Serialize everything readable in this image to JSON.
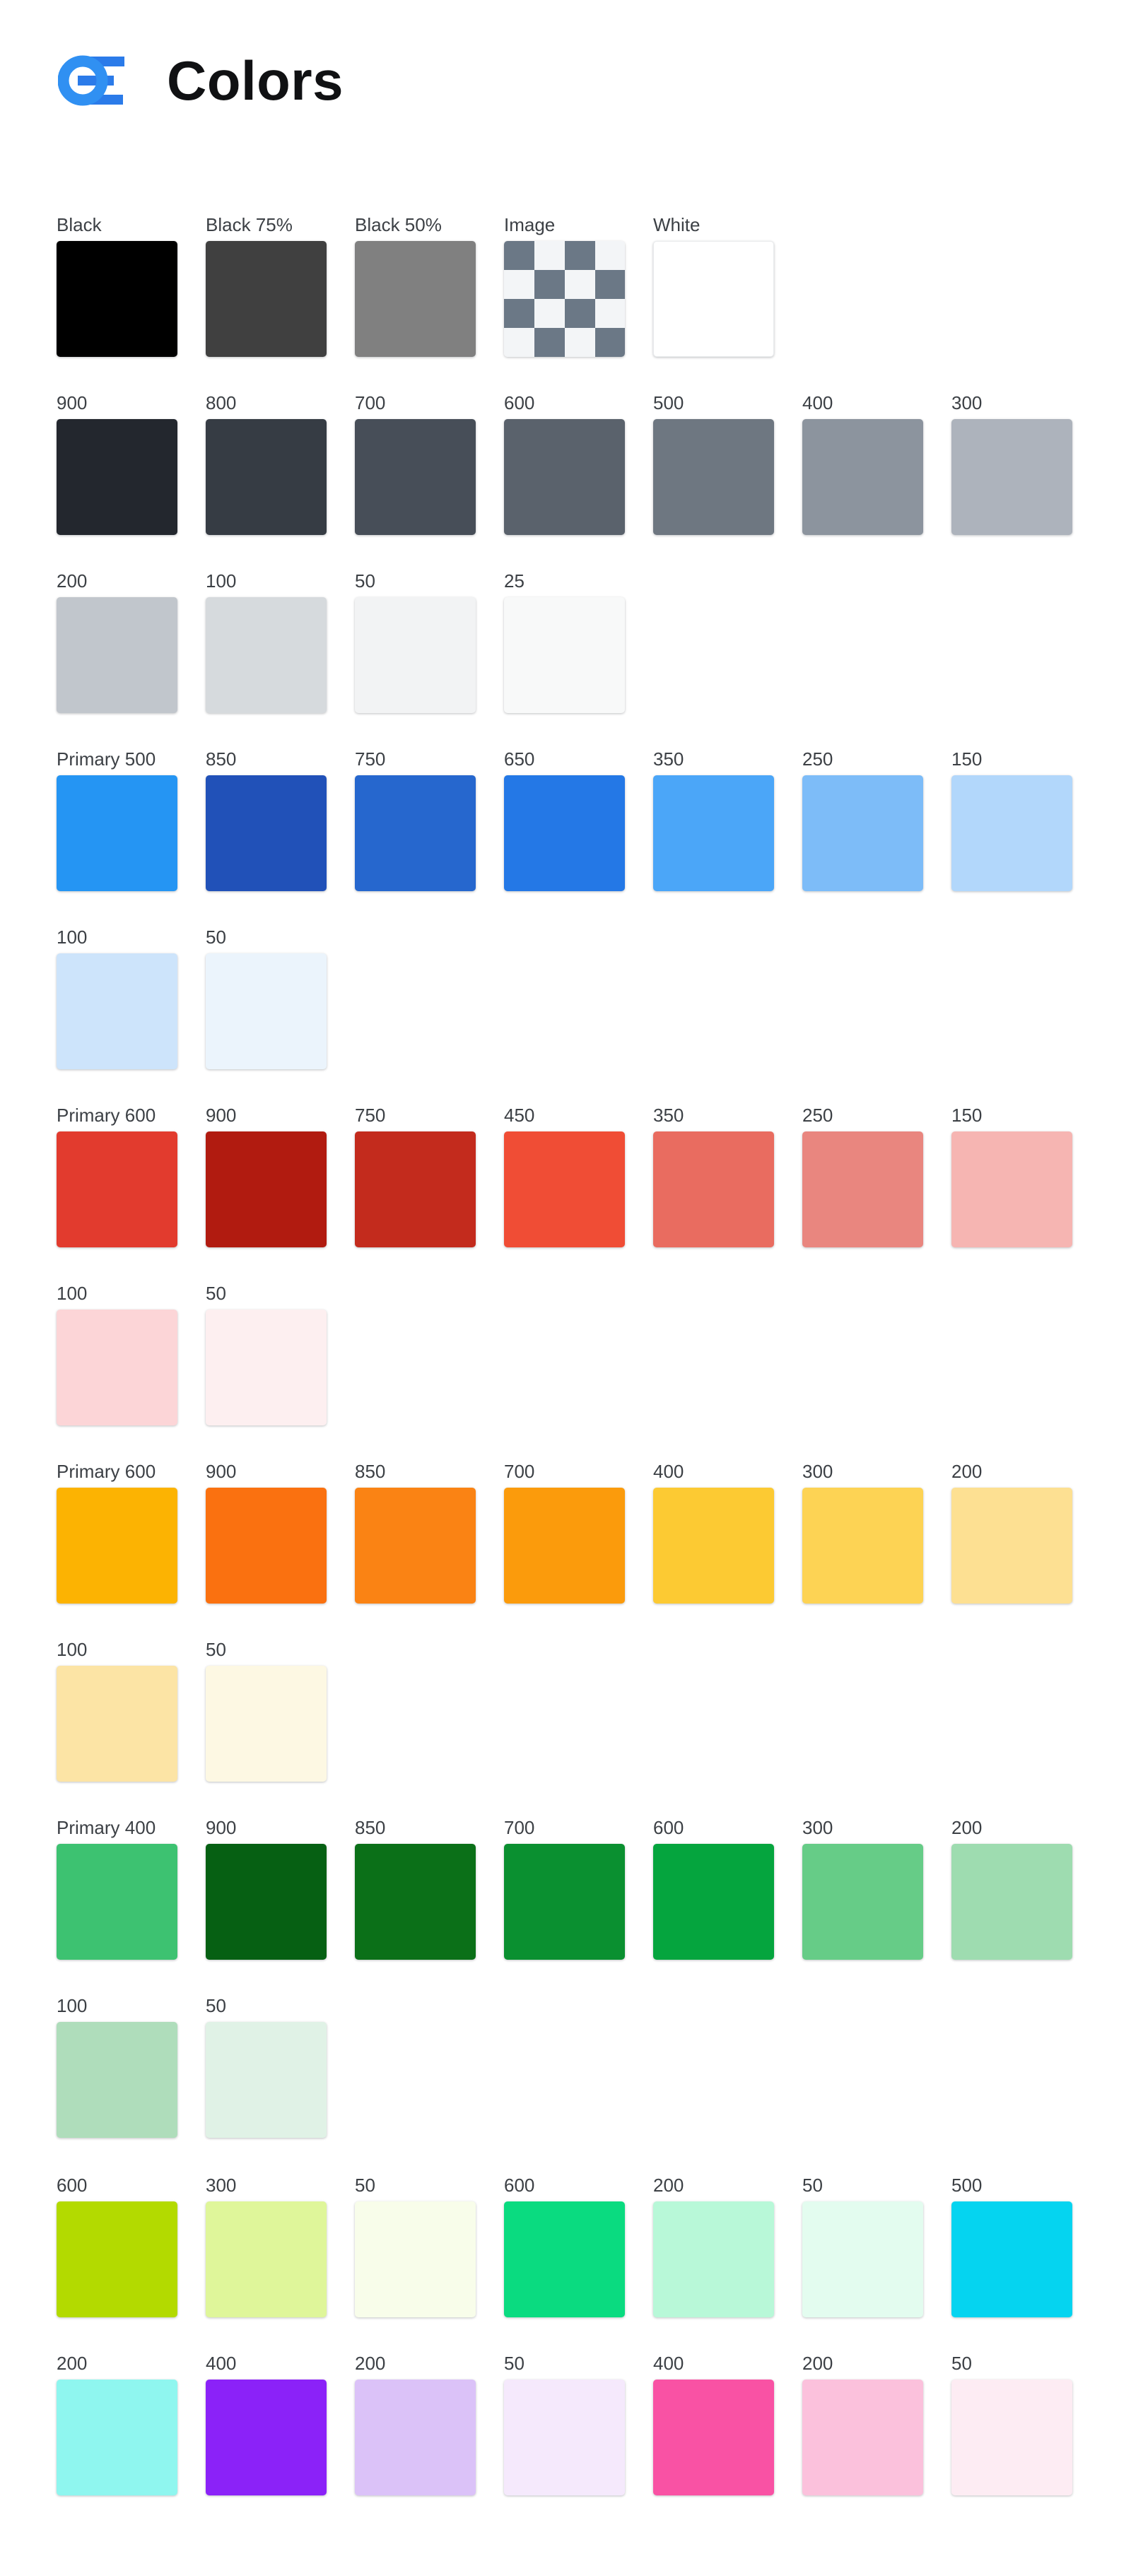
{
  "header": {
    "title": "Colors",
    "logo": {
      "name": "oe-mark",
      "ring_color": "#3090F2",
      "bar_color": "#2B7BE9"
    }
  },
  "palette": {
    "rows": [
      {
        "group": "monochrome",
        "swatches": [
          {
            "label": "Black",
            "color": "#000000"
          },
          {
            "label": "Black 75%",
            "color": "#404040"
          },
          {
            "label": "Black 50%",
            "color": "#808080"
          },
          {
            "label": "Image",
            "type": "checkerboard",
            "checker_dark": "#6B7886",
            "checker_light": "#F3F5F7"
          },
          {
            "label": "White",
            "color": "#FFFFFF",
            "border": "#E9EBED"
          }
        ]
      },
      {
        "group": "gray-dark",
        "swatches": [
          {
            "label": "900",
            "color": "#23272E"
          },
          {
            "label": "800",
            "color": "#363C44"
          },
          {
            "label": "700",
            "color": "#474E58"
          },
          {
            "label": "600",
            "color": "#5A626C"
          },
          {
            "label": "500",
            "color": "#6E7781"
          },
          {
            "label": "400",
            "color": "#8C949E"
          },
          {
            "label": "300",
            "color": "#ADB3BC"
          }
        ]
      },
      {
        "group": "gray-light",
        "swatches": [
          {
            "label": "200",
            "color": "#C1C6CC"
          },
          {
            "label": "100",
            "color": "#D6DADD"
          },
          {
            "label": "50",
            "color": "#F2F3F4"
          },
          {
            "label": "25",
            "color": "#F8F9F9"
          }
        ]
      },
      {
        "group": "blue-main",
        "swatches": [
          {
            "label": "Primary 500",
            "color": "#2595F3"
          },
          {
            "label": "850",
            "color": "#2151B8"
          },
          {
            "label": "750",
            "color": "#2667CE"
          },
          {
            "label": "650",
            "color": "#2478E6"
          },
          {
            "label": "350",
            "color": "#4BA6F8"
          },
          {
            "label": "250",
            "color": "#7DBCF8"
          },
          {
            "label": "150",
            "color": "#B2D7FB"
          }
        ]
      },
      {
        "group": "blue-light",
        "swatches": [
          {
            "label": "100",
            "color": "#CDE4FB"
          },
          {
            "label": "50",
            "color": "#EBF4FC"
          }
        ]
      },
      {
        "group": "red-main",
        "swatches": [
          {
            "label": "Primary 600",
            "color": "#E23B2E"
          },
          {
            "label": "900",
            "color": "#B11B10"
          },
          {
            "label": "750",
            "color": "#C32B1D"
          },
          {
            "label": "450",
            "color": "#F04D35"
          },
          {
            "label": "350",
            "color": "#E96C60"
          },
          {
            "label": "250",
            "color": "#E9867F"
          },
          {
            "label": "150",
            "color": "#F6B5B2"
          }
        ]
      },
      {
        "group": "red-light",
        "swatches": [
          {
            "label": "100",
            "color": "#FCD5D7"
          },
          {
            "label": "50",
            "color": "#FDEFF0"
          }
        ]
      },
      {
        "group": "orange-main",
        "swatches": [
          {
            "label": "Primary 600",
            "color": "#FCB302"
          },
          {
            "label": "900",
            "color": "#FA7110"
          },
          {
            "label": "850",
            "color": "#FA8314"
          },
          {
            "label": "700",
            "color": "#FB9B0C"
          },
          {
            "label": "400",
            "color": "#FCCA33"
          },
          {
            "label": "300",
            "color": "#FDD354"
          },
          {
            "label": "200",
            "color": "#FDE092"
          }
        ]
      },
      {
        "group": "orange-light",
        "swatches": [
          {
            "label": "100",
            "color": "#FCE4A5"
          },
          {
            "label": "50",
            "color": "#FDF8E3"
          }
        ]
      },
      {
        "group": "green-main",
        "swatches": [
          {
            "label": "Primary 400",
            "color": "#3DC271"
          },
          {
            "label": "900",
            "color": "#066013"
          },
          {
            "label": "850",
            "color": "#0B7018"
          },
          {
            "label": "700",
            "color": "#0A9030"
          },
          {
            "label": "600",
            "color": "#05A53E"
          },
          {
            "label": "300",
            "color": "#66CC87"
          },
          {
            "label": "200",
            "color": "#9EDCB0"
          }
        ]
      },
      {
        "group": "green-light",
        "swatches": [
          {
            "label": "100",
            "color": "#AFDDBB"
          },
          {
            "label": "50",
            "color": "#E0F2E6"
          }
        ]
      },
      {
        "group": "accent-1",
        "extra_gap": true,
        "swatches": [
          {
            "label": "600",
            "color": "#B3DA00"
          },
          {
            "label": "300",
            "color": "#DFF69A"
          },
          {
            "label": "50",
            "color": "#F8FDEA"
          },
          {
            "label": "600",
            "color": "#0ADB80"
          },
          {
            "label": "200",
            "color": "#B8F8D8"
          },
          {
            "label": "50",
            "color": "#E3FCEF"
          },
          {
            "label": "500",
            "color": "#05D4F0"
          }
        ]
      },
      {
        "group": "accent-2",
        "swatches": [
          {
            "label": "200",
            "color": "#8FF6EF"
          },
          {
            "label": "400",
            "color": "#8B22F8"
          },
          {
            "label": "200",
            "color": "#DBC2F8"
          },
          {
            "label": "50",
            "color": "#F5E9FC"
          },
          {
            "label": "400",
            "color": "#F952A4"
          },
          {
            "label": "200",
            "color": "#FBC1DC"
          },
          {
            "label": "50",
            "color": "#FDECF3"
          }
        ]
      }
    ]
  }
}
